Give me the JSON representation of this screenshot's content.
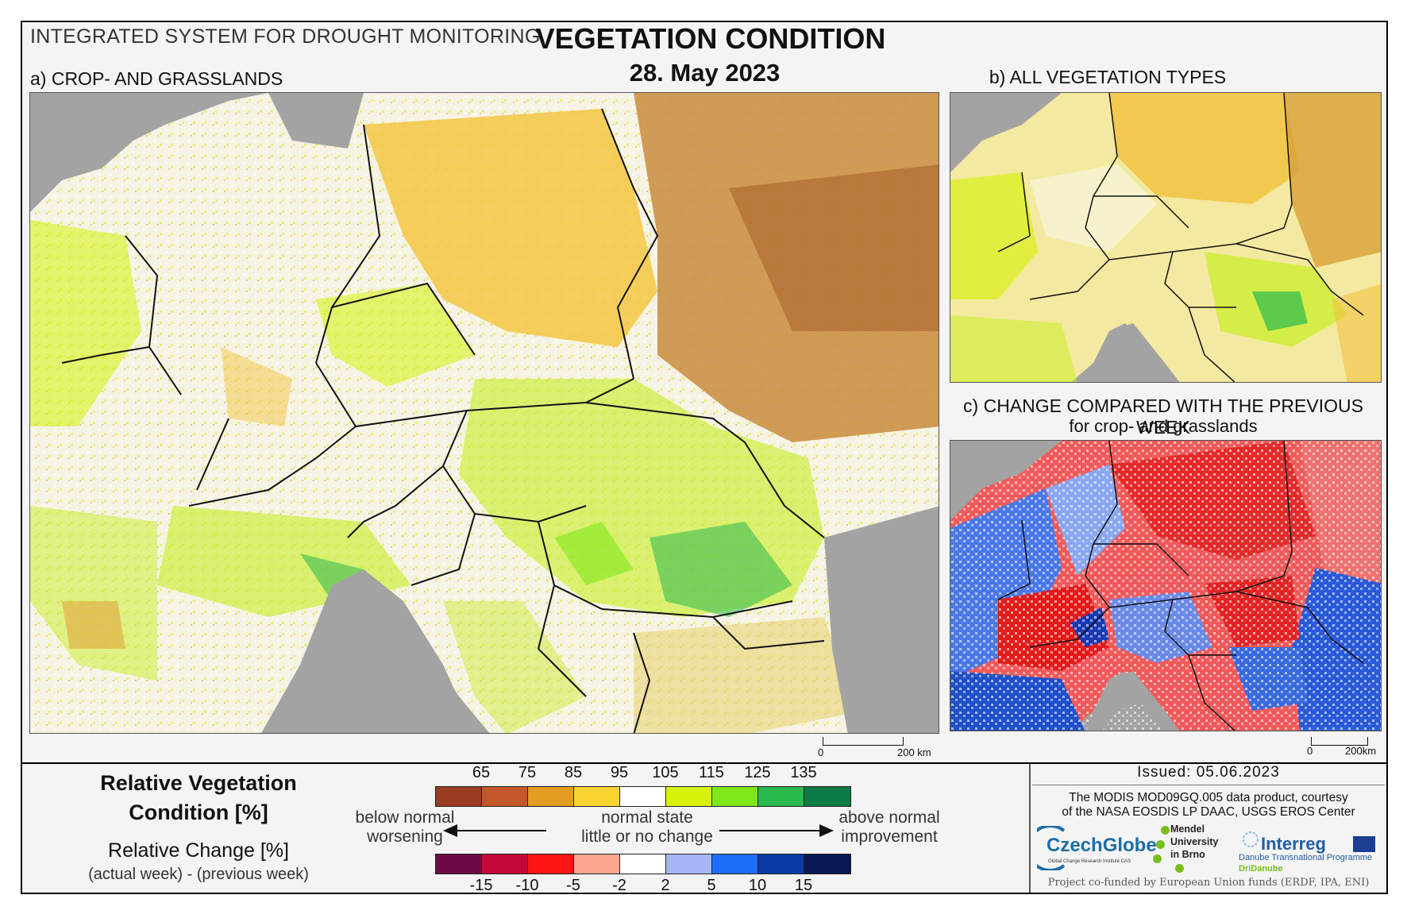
{
  "header": {
    "system": "INTEGRATED SYSTEM FOR DROUGHT MONITORING",
    "title": "VEGETATION CONDITION",
    "date": "28. May 2023"
  },
  "panels": {
    "a": "a) CROP- AND GRASSLANDS",
    "b": "b) ALL VEGETATION TYPES",
    "c": "c) CHANGE COMPARED WITH THE PREVIOUS WEEK",
    "c_sub": "for crop- and grasslands"
  },
  "scalebar_a": {
    "zero": "0",
    "end": "200 km"
  },
  "scalebar_c": {
    "zero": "0",
    "end": "200km"
  },
  "legend": {
    "title_line1": "Relative Vegetation",
    "title_line2": "Condition [%]",
    "rel_change": "Relative Change [%]",
    "rel_change_sub": "(actual week) - (previous week)",
    "condition_ticks": [
      "65",
      "75",
      "85",
      "95",
      "105",
      "115",
      "125",
      "135"
    ],
    "condition_colors": [
      "#9a3d24",
      "#c4572a",
      "#e39e22",
      "#f8d431",
      "#ffffff",
      "#d6f20a",
      "#7fe81a",
      "#2aba4d",
      "#0b7a44"
    ],
    "change_ticks": [
      "-15",
      "-10",
      "-5",
      "-2",
      "2",
      "5",
      "10",
      "15"
    ],
    "change_colors": [
      "#6b0a45",
      "#c4083a",
      "#ff1414",
      "#fca68f",
      "#ffffff",
      "#a5b8f5",
      "#1e6efb",
      "#0a3aa6",
      "#071a52"
    ],
    "below_normal": "below normal",
    "worsening": "worsening",
    "normal_state": "normal state",
    "little_change": "little or no change",
    "above_normal": "above normal",
    "improvement": "improvement"
  },
  "info": {
    "issued": "Issued: 05.06.2023",
    "courtesy_line1": "The MODIS MOD09GQ.005 data product, courtesy",
    "courtesy_line2": "of the NASA EOSDIS LP DAAC, USGS EROS Center",
    "funded": "Project co-funded by European Union funds (ERDF, IPA, ENI)"
  },
  "logos": {
    "czechglobe": "CzechGlobe",
    "czechglobe_sub": "Global Change Research Institute CAS",
    "mendel": [
      "Mendel",
      "University",
      "in Brno"
    ],
    "interreg": "Interreg",
    "interreg_sub": "Danube Transnational Programme",
    "dridanube": "DriDanube"
  }
}
